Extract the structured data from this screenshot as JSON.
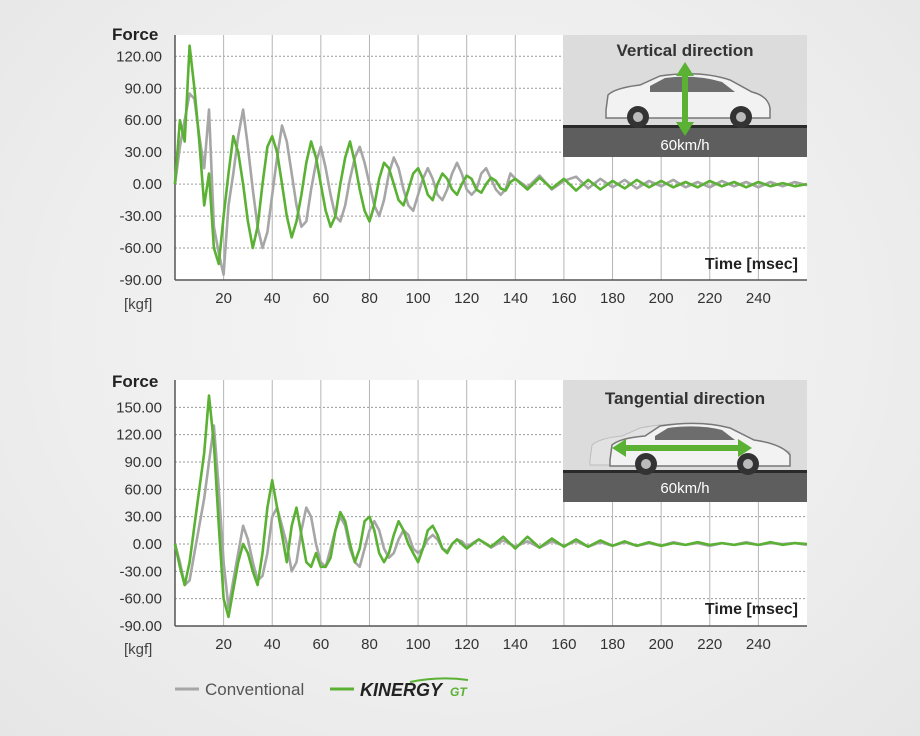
{
  "chart_data": [
    {
      "type": "line",
      "ylabel": "Force",
      "yunit": "[kgf]",
      "xlabel": "Time [msec]",
      "yticks": [
        "120.00",
        "90.00",
        "60.00",
        "30.00",
        "0.00",
        "-30.00",
        "-60.00",
        "-90.00"
      ],
      "xticks": [
        "20",
        "40",
        "60",
        "80",
        "100",
        "120",
        "140",
        "160",
        "180",
        "200",
        "220",
        "240"
      ],
      "ylim": [
        -90,
        140
      ],
      "xlim": [
        0,
        260
      ],
      "grid": true,
      "inset": {
        "title": "Vertical direction",
        "speed": "60km/h",
        "arrow": "vertical"
      },
      "series": [
        {
          "name": "Conventional",
          "color": "#a6a6a6",
          "x": [
            0,
            2,
            4,
            6,
            8,
            10,
            12,
            14,
            16,
            18,
            20,
            22,
            24,
            26,
            28,
            30,
            32,
            34,
            36,
            38,
            40,
            42,
            44,
            46,
            48,
            50,
            52,
            54,
            56,
            58,
            60,
            62,
            64,
            66,
            68,
            70,
            72,
            74,
            76,
            78,
            80,
            82,
            84,
            86,
            88,
            90,
            92,
            94,
            96,
            98,
            100,
            102,
            104,
            106,
            108,
            110,
            112,
            114,
            116,
            118,
            120,
            122,
            124,
            126,
            128,
            130,
            132,
            134,
            136,
            138,
            140,
            145,
            150,
            155,
            160,
            165,
            170,
            175,
            180,
            185,
            190,
            195,
            200,
            205,
            210,
            215,
            220,
            225,
            230,
            235,
            240,
            245,
            250,
            255,
            260
          ],
          "y": [
            0,
            35,
            60,
            85,
            80,
            45,
            15,
            70,
            -40,
            -65,
            -85,
            -20,
            10,
            45,
            70,
            35,
            -5,
            -40,
            -60,
            -45,
            -10,
            25,
            55,
            40,
            10,
            -20,
            -40,
            -35,
            -5,
            20,
            35,
            15,
            -10,
            -30,
            -35,
            -20,
            5,
            25,
            35,
            20,
            0,
            -20,
            -30,
            -15,
            10,
            25,
            15,
            -5,
            -20,
            -25,
            -10,
            5,
            15,
            5,
            -10,
            -15,
            -5,
            10,
            20,
            10,
            -5,
            -10,
            -5,
            10,
            15,
            5,
            -5,
            -10,
            -5,
            10,
            5,
            -3,
            8,
            -5,
            3,
            7,
            -4,
            5,
            -3,
            4,
            -4,
            3,
            -2,
            4,
            -3,
            2,
            -3,
            3,
            -2,
            2,
            -3,
            2,
            -2,
            2,
            -1
          ]
        },
        {
          "name": "KINERGY GT",
          "color": "#5ab134",
          "x": [
            0,
            2,
            4,
            6,
            8,
            10,
            12,
            14,
            16,
            18,
            20,
            22,
            24,
            26,
            28,
            30,
            32,
            34,
            36,
            38,
            40,
            42,
            44,
            46,
            48,
            50,
            52,
            54,
            56,
            58,
            60,
            62,
            64,
            66,
            68,
            70,
            72,
            74,
            76,
            78,
            80,
            82,
            84,
            86,
            88,
            90,
            92,
            94,
            96,
            98,
            100,
            102,
            104,
            106,
            108,
            110,
            112,
            114,
            116,
            118,
            120,
            122,
            124,
            126,
            128,
            130,
            132,
            134,
            136,
            138,
            140,
            145,
            150,
            155,
            160,
            165,
            170,
            175,
            180,
            185,
            190,
            195,
            200,
            205,
            210,
            215,
            220,
            225,
            230,
            235,
            240,
            245,
            250,
            255,
            260
          ],
          "y": [
            0,
            60,
            40,
            130,
            90,
            40,
            -20,
            10,
            -60,
            -75,
            -30,
            10,
            45,
            30,
            0,
            -35,
            -60,
            -40,
            0,
            35,
            45,
            30,
            0,
            -30,
            -50,
            -35,
            -10,
            20,
            40,
            25,
            0,
            -25,
            -40,
            -30,
            0,
            25,
            40,
            20,
            -5,
            -25,
            -35,
            -20,
            5,
            20,
            15,
            0,
            -15,
            -20,
            -5,
            10,
            15,
            5,
            -10,
            -15,
            0,
            10,
            5,
            -5,
            -10,
            0,
            8,
            5,
            -5,
            -8,
            0,
            6,
            3,
            -4,
            -6,
            2,
            5,
            -5,
            6,
            -4,
            5,
            -6,
            4,
            -5,
            3,
            -4,
            4,
            -3,
            3,
            -3,
            2,
            -3,
            3,
            -2,
            2,
            -3,
            2,
            -2,
            1,
            -2,
            0
          ]
        }
      ]
    },
    {
      "type": "line",
      "ylabel": "Force",
      "yunit": "[kgf]",
      "xlabel": "Time [msec]",
      "yticks": [
        "150.00",
        "120.00",
        "90.00",
        "60.00",
        "30.00",
        "0.00",
        "-30.00",
        "-60.00",
        "-90.00"
      ],
      "xticks": [
        "20",
        "40",
        "60",
        "80",
        "100",
        "120",
        "140",
        "160",
        "180",
        "200",
        "220",
        "240"
      ],
      "ylim": [
        -90,
        180
      ],
      "xlim": [
        0,
        260
      ],
      "grid": true,
      "inset": {
        "title": "Tangential direction",
        "speed": "60km/h",
        "arrow": "horizontal"
      },
      "series": [
        {
          "name": "Conventional",
          "color": "#a6a6a6",
          "x": [
            0,
            2,
            4,
            6,
            8,
            10,
            12,
            14,
            16,
            18,
            20,
            22,
            24,
            26,
            28,
            30,
            32,
            34,
            36,
            38,
            40,
            42,
            44,
            46,
            48,
            50,
            52,
            54,
            56,
            58,
            60,
            62,
            64,
            66,
            68,
            70,
            72,
            74,
            76,
            78,
            80,
            82,
            84,
            86,
            88,
            90,
            92,
            94,
            96,
            98,
            100,
            102,
            104,
            106,
            108,
            110,
            112,
            114,
            116,
            118,
            120,
            125,
            130,
            135,
            140,
            145,
            150,
            155,
            160,
            165,
            170,
            175,
            180,
            185,
            190,
            195,
            200,
            205,
            210,
            215,
            220,
            225,
            230,
            235,
            240,
            245,
            250,
            255,
            260
          ],
          "y": [
            0,
            -20,
            -45,
            -40,
            -10,
            20,
            50,
            90,
            130,
            60,
            -20,
            -70,
            -40,
            -10,
            20,
            5,
            -20,
            -40,
            -35,
            -10,
            30,
            40,
            20,
            0,
            -30,
            -20,
            15,
            40,
            30,
            0,
            -20,
            -25,
            -5,
            15,
            30,
            20,
            -5,
            -20,
            -25,
            -5,
            15,
            25,
            15,
            -5,
            -15,
            -10,
            5,
            15,
            10,
            -5,
            -10,
            -5,
            5,
            10,
            5,
            -5,
            -8,
            0,
            5,
            3,
            -3,
            5,
            -4,
            4,
            -3,
            3,
            -4,
            3,
            -2,
            3,
            -3,
            2,
            -2,
            2,
            -2,
            1,
            -2,
            2,
            -1,
            1,
            -2,
            1,
            -1,
            2,
            -1,
            1,
            0,
            1,
            -1
          ]
        },
        {
          "name": "KINERGY GT",
          "color": "#5ab134",
          "x": [
            0,
            2,
            4,
            6,
            8,
            10,
            12,
            14,
            16,
            18,
            20,
            22,
            24,
            26,
            28,
            30,
            32,
            34,
            36,
            38,
            40,
            42,
            44,
            46,
            48,
            50,
            52,
            54,
            56,
            58,
            60,
            62,
            64,
            66,
            68,
            70,
            72,
            74,
            76,
            78,
            80,
            82,
            84,
            86,
            88,
            90,
            92,
            94,
            96,
            98,
            100,
            102,
            104,
            106,
            108,
            110,
            112,
            114,
            116,
            118,
            120,
            125,
            130,
            135,
            140,
            145,
            150,
            155,
            160,
            165,
            170,
            175,
            180,
            185,
            190,
            195,
            200,
            205,
            210,
            215,
            220,
            225,
            230,
            235,
            240,
            245,
            250,
            255,
            260
          ],
          "y": [
            0,
            -25,
            -45,
            -20,
            20,
            60,
            100,
            163,
            110,
            20,
            -60,
            -80,
            -50,
            -20,
            0,
            -10,
            -30,
            -45,
            -10,
            40,
            70,
            40,
            10,
            -20,
            20,
            40,
            10,
            -20,
            -25,
            -10,
            -25,
            -25,
            -15,
            15,
            35,
            25,
            0,
            -20,
            -5,
            25,
            30,
            15,
            -10,
            -20,
            -10,
            10,
            25,
            15,
            0,
            -10,
            -20,
            -5,
            15,
            20,
            10,
            -5,
            -10,
            0,
            5,
            0,
            -5,
            5,
            -3,
            8,
            -5,
            8,
            -4,
            6,
            -3,
            5,
            -3,
            4,
            -2,
            3,
            -2,
            2,
            -2,
            1,
            -1,
            2,
            -1,
            1,
            -1,
            1,
            -1,
            2,
            -1,
            1,
            0
          ]
        }
      ]
    }
  ],
  "legend": {
    "conventional_label": "Conventional",
    "kinergy_label": "KINERGY",
    "kinergy_suffix": "GT"
  }
}
